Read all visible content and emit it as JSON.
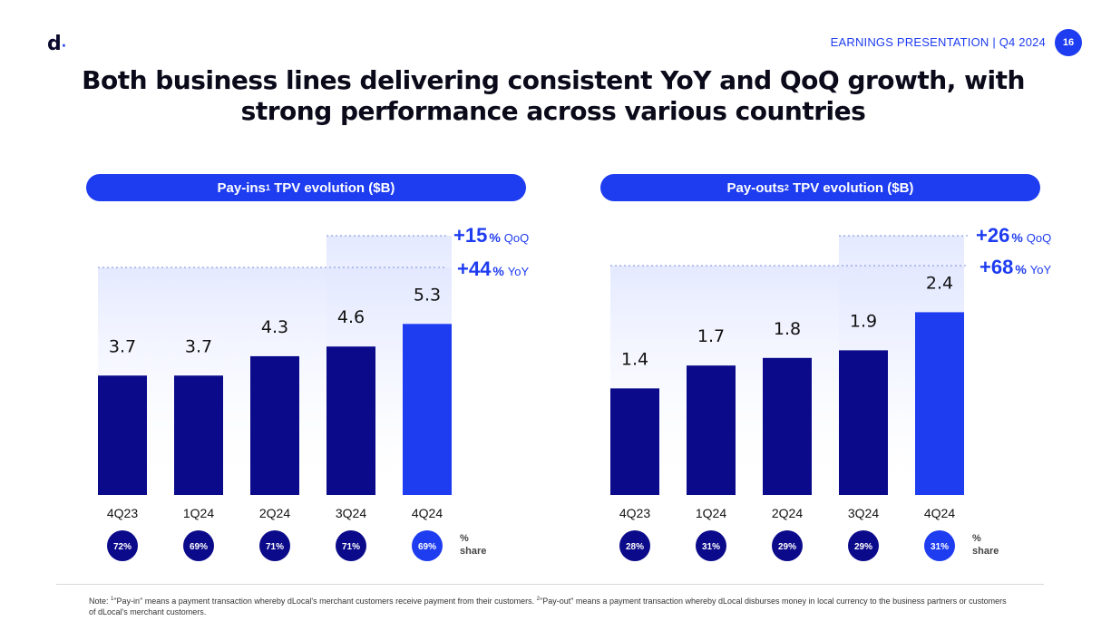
{
  "header": {
    "logo_letter": "d",
    "logo_dot": "·",
    "tag": "EARNINGS PRESENTATION | Q4 2024",
    "page_number": "16"
  },
  "title": "Both business lines delivering consistent YoY and QoQ growth, with strong performance across various countries",
  "colors": {
    "accent": "#1e3cf0",
    "bar_dark": "#0b0a8a",
    "text": "#111111"
  },
  "chart_data": [
    {
      "type": "bar",
      "title_main": "Pay-ins",
      "title_sup": "1",
      "title_rest": " TPV evolution ($B)",
      "categories": [
        "4Q23",
        "1Q24",
        "2Q24",
        "3Q24",
        "4Q24"
      ],
      "values": [
        3.7,
        3.7,
        4.3,
        4.6,
        5.3
      ],
      "value_labels": [
        "3.7",
        "3.7",
        "4.3",
        "4.6",
        "5.3"
      ],
      "share": [
        "72%",
        "69%",
        "71%",
        "71%",
        "69%"
      ],
      "share_label": [
        "%",
        "share"
      ],
      "qoq": {
        "value": "+15",
        "unit": "%",
        "label": "QoQ"
      },
      "yoy": {
        "value": "+44",
        "unit": "%",
        "label": "YoY"
      },
      "ylim": [
        0,
        7.2
      ]
    },
    {
      "type": "bar",
      "title_main": "Pay-outs",
      "title_sup": "2",
      "title_rest": " TPV evolution ($B)",
      "categories": [
        "4Q23",
        "1Q24",
        "2Q24",
        "3Q24",
        "4Q24"
      ],
      "values": [
        1.4,
        1.7,
        1.8,
        1.9,
        2.4
      ],
      "value_labels": [
        "1.4",
        "1.7",
        "1.8",
        "1.9",
        "2.4"
      ],
      "share": [
        "28%",
        "31%",
        "29%",
        "29%",
        "31%"
      ],
      "share_label": [
        "%",
        "share"
      ],
      "qoq": {
        "value": "+26",
        "unit": "%",
        "label": "QoQ"
      },
      "yoy": {
        "value": "+68",
        "unit": "%",
        "label": "YoY"
      },
      "ylim": [
        0,
        3.0
      ]
    }
  ],
  "footnote": {
    "prefix": "Note: ",
    "sup1": "1",
    "part1": "\"Pay-in\" means a payment transaction whereby dLocal's merchant customers receive payment from their customers. ",
    "sup2": "2",
    "part2": "\"Pay-out\" means a payment transaction whereby dLocal disburses money in local currency to the business partners or customers of dLocal's merchant customers."
  }
}
